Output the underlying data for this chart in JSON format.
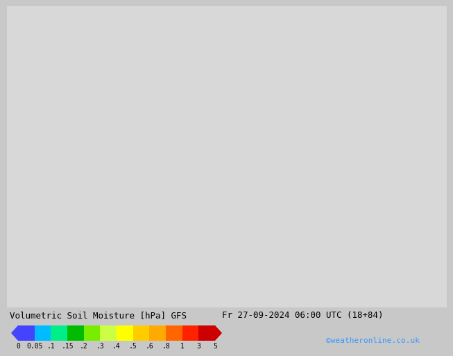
{
  "title_left": "Volumetric Soil Moisture [hPa] GFS",
  "title_right": "Fr 27-09-2024 06:00 UTC (18+84)",
  "credit": "©weatheronline.co.uk",
  "colorbar_tick_labels": [
    "0",
    "0.05",
    ".1",
    ".15",
    ".2",
    ".3",
    ".4",
    ".5",
    ".6",
    ".8",
    "1",
    "3",
    "5"
  ],
  "colorbar_colors": [
    "#4444ff",
    "#00bbff",
    "#00ee88",
    "#00bb00",
    "#77ee00",
    "#ccff44",
    "#ffff00",
    "#ffcc00",
    "#ffaa00",
    "#ff6600",
    "#ff2200",
    "#cc0000"
  ],
  "fig_bg_color": "#c8c8c8",
  "bottom_bar_color": "#c8c8c8",
  "map_bg_color": "#d8d8d8",
  "text_color": "#000000",
  "credit_color": "#3399ff",
  "title_fontsize": 9,
  "credit_fontsize": 8,
  "tick_fontsize": 7
}
